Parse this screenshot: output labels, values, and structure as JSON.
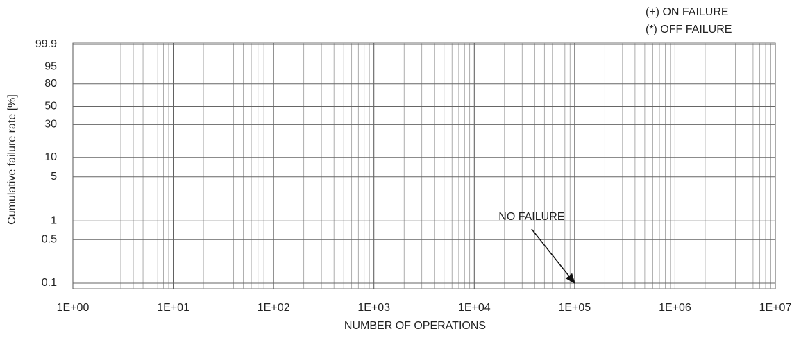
{
  "chart_data": {
    "type": "weibull",
    "x_label": "NUMBER OF OPERATIONS",
    "y_label": "Cumulative failure rate [%]",
    "xscale": "log",
    "yscale": "weibull",
    "xlim": [
      1,
      10000000
    ],
    "xticks": [
      {
        "value": 1,
        "label": "1E+00"
      },
      {
        "value": 10,
        "label": "1E+01"
      },
      {
        "value": 100,
        "label": "1E+02"
      },
      {
        "value": 1000,
        "label": "1E+03"
      },
      {
        "value": 10000,
        "label": "1E+04"
      },
      {
        "value": 100000,
        "label": "1E+05"
      },
      {
        "value": 1000000,
        "label": "1E+06"
      },
      {
        "value": 10000000,
        "label": "1E+07"
      }
    ],
    "ylim": [
      0.1,
      99.9
    ],
    "yticks": [
      99.9,
      95,
      80,
      50,
      30,
      10,
      5,
      1,
      0.5,
      0.1
    ],
    "grid": true,
    "legend": "upper right",
    "series": [
      {
        "name": "(+) ON FAILURE",
        "x": [],
        "values": []
      },
      {
        "name": "(*) OFF FAILURE",
        "x": [],
        "values": []
      }
    ],
    "annotations": [
      {
        "text": "NO FAILURE",
        "x": 100000,
        "y": 0.1
      }
    ]
  }
}
